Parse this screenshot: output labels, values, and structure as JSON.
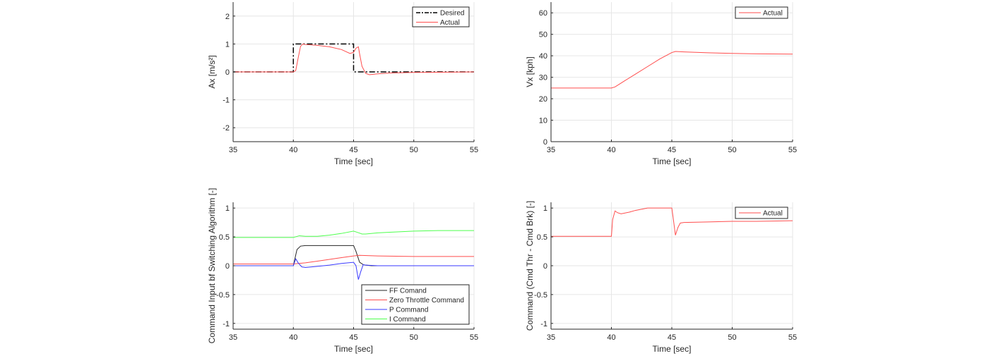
{
  "chart_data": [
    {
      "type": "line",
      "xlabel": "Time [sec]",
      "ylabel": "Ax [m/s²]",
      "xlim": [
        35,
        55
      ],
      "ylim": [
        -2.5,
        2.5
      ],
      "xticks": [
        35,
        40,
        45,
        50,
        55
      ],
      "xtick_labels": [
        "35",
        "40",
        "45",
        "50",
        "55"
      ],
      "yticks": [
        -2,
        -1,
        0,
        1,
        2
      ],
      "ytick_labels": [
        "-2",
        "-1",
        "0",
        "1",
        "2"
      ],
      "grid": true,
      "legend_position": "top-right",
      "series": [
        {
          "name": "Desired",
          "color": "#000000",
          "dash": "dashdot",
          "x": [
            35,
            40,
            40,
            45,
            45,
            55
          ],
          "y": [
            0,
            0,
            1,
            1,
            0,
            0
          ]
        },
        {
          "name": "Actual",
          "color": "#ff4d4d",
          "dash": "solid",
          "x": [
            35,
            40,
            40.2,
            40.4,
            40.6,
            40.8,
            41,
            42,
            43,
            44,
            44.7,
            45,
            45.2,
            45.4,
            45.5,
            45.7,
            46,
            46.3,
            47,
            48,
            50,
            55
          ],
          "y": [
            0,
            0,
            0.05,
            0.5,
            0.92,
            1.0,
            0.98,
            0.95,
            0.9,
            0.8,
            0.66,
            0.7,
            0.85,
            0.9,
            0.65,
            0.2,
            -0.05,
            -0.1,
            -0.07,
            -0.04,
            -0.02,
            0
          ]
        }
      ]
    },
    {
      "type": "line",
      "xlabel": "Time [sec]",
      "ylabel": "Vx [kph]",
      "xlim": [
        35,
        55
      ],
      "ylim": [
        0,
        65
      ],
      "xticks": [
        35,
        40,
        45,
        50,
        55
      ],
      "xtick_labels": [
        "35",
        "40",
        "45",
        "50",
        "55"
      ],
      "yticks": [
        0,
        10,
        20,
        30,
        40,
        50,
        60
      ],
      "ytick_labels": [
        "0",
        "10",
        "20",
        "30",
        "40",
        "50",
        "60"
      ],
      "grid": true,
      "legend_position": "top-right",
      "series": [
        {
          "name": "Actual",
          "color": "#ff4d4d",
          "dash": "solid",
          "x": [
            35,
            40,
            40.3,
            41,
            42,
            43,
            44,
            45,
            45.3,
            46,
            48,
            50,
            52,
            55
          ],
          "y": [
            25,
            25,
            25.5,
            28,
            31.5,
            35,
            38.5,
            41.5,
            42,
            41.8,
            41.4,
            41.1,
            40.9,
            40.8
          ]
        }
      ]
    },
    {
      "type": "line",
      "xlabel": "Time [sec]",
      "ylabel": "Command Input bf Switching Algorithm [-]",
      "xlim": [
        35,
        55
      ],
      "ylim": [
        -1.1,
        1.1
      ],
      "xticks": [
        35,
        40,
        45,
        50,
        55
      ],
      "xtick_labels": [
        "35",
        "40",
        "45",
        "50",
        "55"
      ],
      "yticks": [
        -1,
        -0.5,
        0,
        0.5,
        1
      ],
      "ytick_labels": [
        "-1",
        "-0.5",
        "0",
        "0.5",
        "1"
      ],
      "grid": true,
      "legend_position": "bottom-right",
      "series": [
        {
          "name": "FF Comand",
          "color": "#262626",
          "dash": "solid",
          "x": [
            35,
            40,
            40.3,
            40.6,
            41,
            45,
            45.2,
            45.5,
            45.8,
            46,
            46.5,
            55
          ],
          "y": [
            0,
            0,
            0.28,
            0.34,
            0.35,
            0.35,
            0.25,
            0.06,
            0.02,
            0.01,
            0,
            0
          ]
        },
        {
          "name": "Zero Throttle Command",
          "color": "#ff4d4d",
          "dash": "solid",
          "x": [
            35,
            40,
            41,
            42,
            43,
            44,
            45,
            45.5,
            47,
            50,
            55
          ],
          "y": [
            0.03,
            0.03,
            0.05,
            0.08,
            0.11,
            0.14,
            0.17,
            0.18,
            0.17,
            0.16,
            0.16
          ]
        },
        {
          "name": "P Command",
          "color": "#3a3aff",
          "dash": "solid",
          "x": [
            35,
            40,
            40.2,
            40.4,
            40.7,
            41,
            42,
            43,
            44,
            45,
            45.2,
            45.4,
            45.6,
            45.8,
            46,
            47,
            50,
            55
          ],
          "y": [
            0,
            0,
            0.12,
            0.05,
            -0.02,
            -0.03,
            -0.01,
            0.01,
            0.04,
            0.06,
            0.0,
            -0.24,
            -0.1,
            0.02,
            0.01,
            0.0,
            0.0,
            0.0
          ]
        },
        {
          "name": "I Command",
          "color": "#4dff4d",
          "dash": "solid",
          "x": [
            35,
            40,
            40.5,
            41,
            42,
            43,
            44,
            45,
            45.3,
            45.7,
            46,
            47,
            48,
            50,
            52,
            55
          ],
          "y": [
            0.49,
            0.49,
            0.52,
            0.51,
            0.51,
            0.53,
            0.56,
            0.6,
            0.58,
            0.55,
            0.55,
            0.57,
            0.58,
            0.6,
            0.61,
            0.61
          ]
        }
      ]
    },
    {
      "type": "line",
      "xlabel": "Time [sec]",
      "ylabel": "Command (Cmd Thr - Cmd Brk) [-]",
      "xlim": [
        35,
        55
      ],
      "ylim": [
        -1.1,
        1.1
      ],
      "xticks": [
        35,
        40,
        45,
        50,
        55
      ],
      "xtick_labels": [
        "35",
        "40",
        "45",
        "50",
        "55"
      ],
      "yticks": [
        -1,
        -0.5,
        0,
        0.5,
        1
      ],
      "ytick_labels": [
        "-1",
        "-0.5",
        "0",
        "0.5",
        "1"
      ],
      "grid": true,
      "legend_position": "top-right",
      "series": [
        {
          "name": "Actual",
          "color": "#ff4d4d",
          "dash": "solid",
          "x": [
            35,
            40,
            40.1,
            40.3,
            40.5,
            40.8,
            41.5,
            42,
            43,
            44,
            45,
            45.1,
            45.3,
            45.5,
            45.7,
            46,
            48,
            50,
            52,
            55
          ],
          "y": [
            0.51,
            0.51,
            0.8,
            0.95,
            0.92,
            0.9,
            0.93,
            0.96,
            1.0,
            1.0,
            1.0,
            0.85,
            0.53,
            0.66,
            0.74,
            0.75,
            0.76,
            0.77,
            0.77,
            0.78
          ]
        }
      ]
    }
  ]
}
